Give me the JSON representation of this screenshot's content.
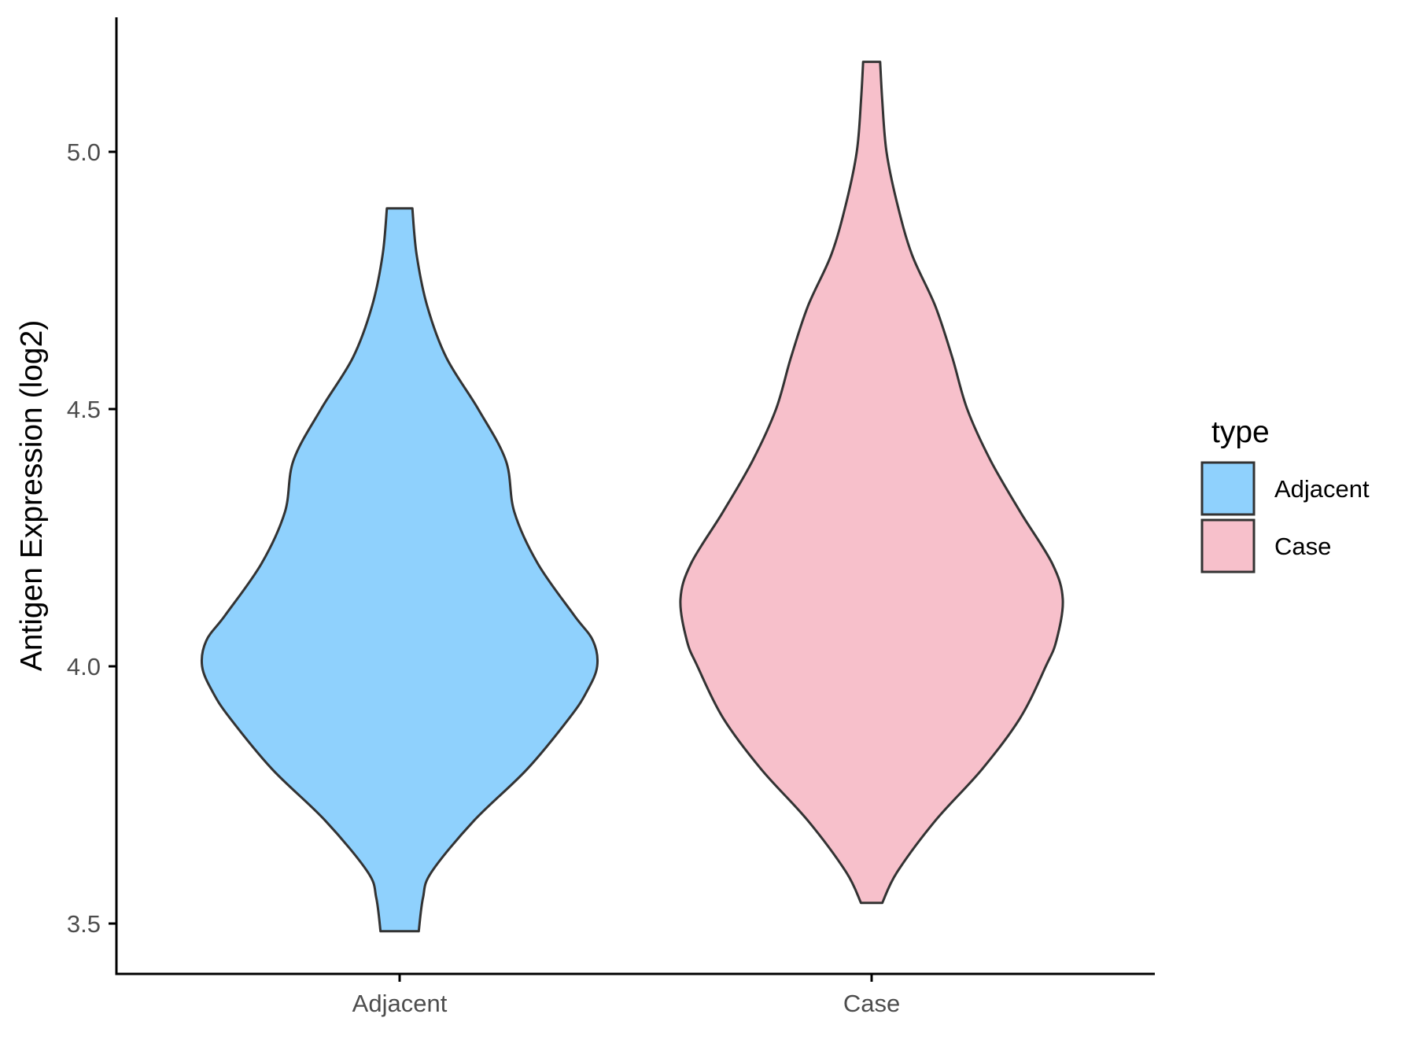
{
  "chart_data": {
    "type": "violin",
    "title": "",
    "xlabel": "",
    "ylabel": "Antigen Expression (log2)",
    "ylim": [
      3.4,
      5.25
    ],
    "yticks": [
      3.5,
      4.0,
      4.5,
      5.0
    ],
    "ytick_labels": [
      "3.5",
      "4.0",
      "4.5",
      "5.0"
    ],
    "categories": [
      "Adjacent",
      "Case"
    ],
    "grid": false,
    "legend": {
      "title": "type",
      "position": "right",
      "entries": [
        "Adjacent",
        "Case"
      ]
    },
    "colors": {
      "Adjacent": "#8fd1fd",
      "Case": "#f7c0cb",
      "outline": "#333333"
    },
    "series": [
      {
        "name": "Adjacent",
        "min": 3.485,
        "max": 4.89,
        "mode": 4.02,
        "density": [
          [
            3.485,
            0.09
          ],
          [
            3.55,
            0.11
          ],
          [
            3.6,
            0.15
          ],
          [
            3.7,
            0.35
          ],
          [
            3.8,
            0.6
          ],
          [
            3.9,
            0.8
          ],
          [
            3.95,
            0.88
          ],
          [
            4.0,
            0.93
          ],
          [
            4.05,
            0.91
          ],
          [
            4.1,
            0.82
          ],
          [
            4.2,
            0.65
          ],
          [
            4.3,
            0.54
          ],
          [
            4.4,
            0.5
          ],
          [
            4.5,
            0.37
          ],
          [
            4.6,
            0.22
          ],
          [
            4.7,
            0.13
          ],
          [
            4.8,
            0.08
          ],
          [
            4.89,
            0.06
          ]
        ]
      },
      {
        "name": "Case",
        "min": 3.54,
        "max": 5.175,
        "mode": 4.13,
        "density": [
          [
            3.54,
            0.05
          ],
          [
            3.6,
            0.12
          ],
          [
            3.7,
            0.3
          ],
          [
            3.8,
            0.52
          ],
          [
            3.9,
            0.7
          ],
          [
            4.0,
            0.82
          ],
          [
            4.05,
            0.87
          ],
          [
            4.13,
            0.9
          ],
          [
            4.2,
            0.85
          ],
          [
            4.3,
            0.7
          ],
          [
            4.4,
            0.56
          ],
          [
            4.5,
            0.45
          ],
          [
            4.6,
            0.38
          ],
          [
            4.7,
            0.3
          ],
          [
            4.8,
            0.19
          ],
          [
            4.9,
            0.12
          ],
          [
            5.0,
            0.07
          ],
          [
            5.1,
            0.05
          ],
          [
            5.175,
            0.04
          ]
        ]
      }
    ]
  }
}
